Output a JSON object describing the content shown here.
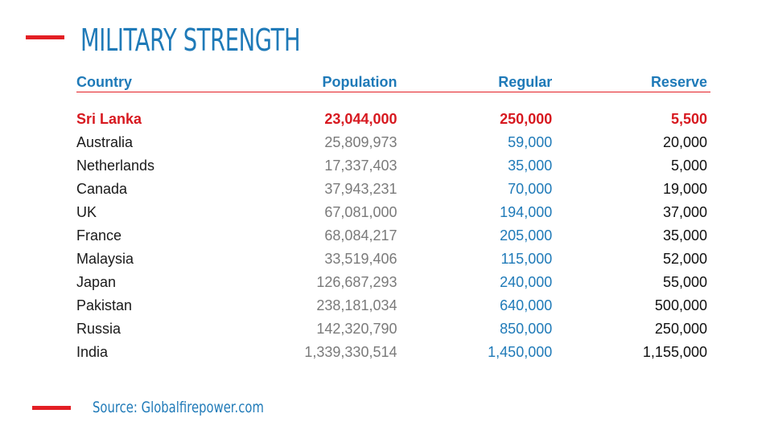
{
  "slide": {
    "title": "MILITARY STRENGTH",
    "source": "Source: Globalfirepower.com",
    "accent_color": "#e31e24",
    "text_blue": "#1f7ab8",
    "highlight_color": "#d71920"
  },
  "table": {
    "headers": {
      "country": "Country",
      "population": "Population",
      "regular": "Regular",
      "reserve": "Reserve"
    },
    "rows": [
      {
        "country": "Sri Lanka",
        "population": "23,044,000",
        "regular": "250,000",
        "reserve": "5,500",
        "highlight": true
      },
      {
        "country": "Australia",
        "population": "25,809,973",
        "regular": "59,000",
        "reserve": "20,000"
      },
      {
        "country": "Netherlands",
        "population": "17,337,403",
        "regular": "35,000",
        "reserve": "5,000"
      },
      {
        "country": "Canada",
        "population": "37,943,231",
        "regular": "70,000",
        "reserve": "19,000"
      },
      {
        "country": "UK",
        "population": "67,081,000",
        "regular": "194,000",
        "reserve": "37,000"
      },
      {
        "country": "France",
        "population": "68,084,217",
        "regular": "205,000",
        "reserve": "35,000"
      },
      {
        "country": "Malaysia",
        "population": "33,519,406",
        "regular": "115,000",
        "reserve": "52,000"
      },
      {
        "country": "Japan",
        "population": "126,687,293",
        "regular": "240,000",
        "reserve": "55,000"
      },
      {
        "country": "Pakistan",
        "population": "238,181,034",
        "regular": "640,000",
        "reserve": "500,000"
      },
      {
        "country": "Russia",
        "population": "142,320,790",
        "regular": "850,000",
        "reserve": "250,000"
      },
      {
        "country": "India",
        "population": "1,339,330,514",
        "regular": "1,450,000",
        "reserve": "1,155,000"
      }
    ]
  }
}
